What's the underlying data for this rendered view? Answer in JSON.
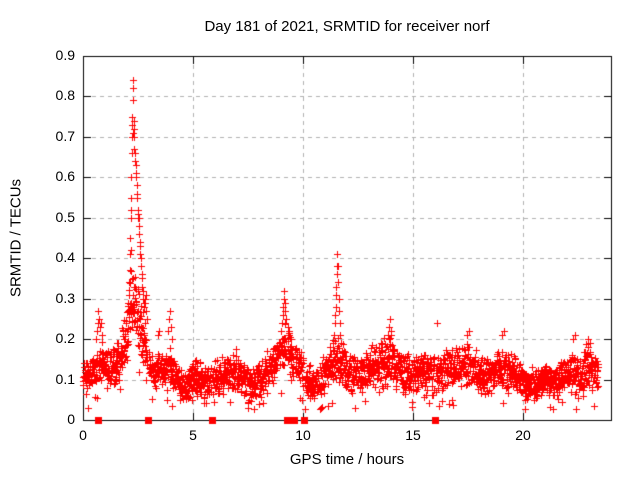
{
  "chart_data": {
    "type": "scatter",
    "title": "Day 181 of 2021, SRMTID for receiver norf",
    "xlabel": "GPS time / hours",
    "ylabel": "SRMTID / TECUs",
    "xlim": [
      0,
      24
    ],
    "ylim": [
      0,
      0.9
    ],
    "xticks": [
      0,
      5,
      10,
      15,
      20
    ],
    "yticks": [
      "0",
      "0.1",
      "0.2",
      "0.3",
      "0.4",
      "0.5",
      "0.6",
      "0.7",
      "0.8",
      "0.9"
    ],
    "legend": "none",
    "grid": {
      "visible": true,
      "style": "dashed",
      "color": "#b0b0b0"
    },
    "marker": {
      "shape": "plus",
      "color": "#ff0000",
      "size": 7
    },
    "bottom_marker_style": {
      "shape": "filled-square",
      "color": "#ff0000",
      "size": 7
    },
    "bottom_markers": [
      0.68,
      2.95,
      5.86,
      9.27,
      9.6,
      10.05,
      16.0
    ],
    "gaps": [
      [
        0.66,
        0.71
      ],
      [
        2.92,
        2.98
      ],
      [
        5.83,
        5.89
      ],
      [
        9.24,
        9.3
      ],
      [
        9.57,
        9.63
      ],
      [
        10.02,
        10.08
      ],
      [
        15.97,
        16.03
      ]
    ],
    "sampling": {
      "start": 0.0,
      "end": 23.42,
      "step": 0.0098,
      "seed": 181
    },
    "envelope": [
      [
        0.0,
        0.11,
        0.045
      ],
      [
        0.3,
        0.1,
        0.04
      ],
      [
        0.55,
        0.13,
        0.05
      ],
      [
        0.7,
        0.16,
        0.06
      ],
      [
        0.85,
        0.14,
        0.055
      ],
      [
        1.0,
        0.12,
        0.05
      ],
      [
        1.3,
        0.13,
        0.05
      ],
      [
        1.6,
        0.15,
        0.055
      ],
      [
        1.8,
        0.17,
        0.06
      ],
      [
        2.0,
        0.22,
        0.07
      ],
      [
        2.15,
        0.28,
        0.08
      ],
      [
        2.3,
        0.3,
        0.09
      ],
      [
        2.45,
        0.27,
        0.08
      ],
      [
        2.6,
        0.24,
        0.08
      ],
      [
        2.75,
        0.21,
        0.07
      ],
      [
        2.9,
        0.16,
        0.05
      ],
      [
        3.05,
        0.12,
        0.045
      ],
      [
        3.3,
        0.11,
        0.045
      ],
      [
        3.6,
        0.13,
        0.05
      ],
      [
        3.9,
        0.15,
        0.06
      ],
      [
        4.1,
        0.11,
        0.05
      ],
      [
        4.4,
        0.09,
        0.04
      ],
      [
        4.7,
        0.08,
        0.035
      ],
      [
        5.0,
        0.1,
        0.045
      ],
      [
        5.4,
        0.1,
        0.045
      ],
      [
        5.8,
        0.09,
        0.04
      ],
      [
        6.2,
        0.11,
        0.045
      ],
      [
        6.6,
        0.12,
        0.05
      ],
      [
        6.9,
        0.13,
        0.05
      ],
      [
        7.2,
        0.1,
        0.045
      ],
      [
        7.6,
        0.08,
        0.04
      ],
      [
        8.0,
        0.1,
        0.045
      ],
      [
        8.4,
        0.12,
        0.05
      ],
      [
        8.8,
        0.15,
        0.055
      ],
      [
        9.1,
        0.18,
        0.06
      ],
      [
        9.3,
        0.19,
        0.065
      ],
      [
        9.5,
        0.15,
        0.055
      ],
      [
        9.8,
        0.13,
        0.05
      ],
      [
        10.1,
        0.1,
        0.05
      ],
      [
        10.5,
        0.09,
        0.045
      ],
      [
        10.9,
        0.11,
        0.05
      ],
      [
        11.2,
        0.13,
        0.055
      ],
      [
        11.5,
        0.16,
        0.065
      ],
      [
        11.8,
        0.14,
        0.055
      ],
      [
        12.1,
        0.12,
        0.05
      ],
      [
        12.5,
        0.11,
        0.05
      ],
      [
        12.9,
        0.13,
        0.055
      ],
      [
        13.3,
        0.13,
        0.055
      ],
      [
        13.7,
        0.14,
        0.06
      ],
      [
        13.95,
        0.15,
        0.06
      ],
      [
        14.2,
        0.12,
        0.05
      ],
      [
        14.6,
        0.11,
        0.05
      ],
      [
        15.0,
        0.12,
        0.05
      ],
      [
        15.4,
        0.11,
        0.05
      ],
      [
        15.8,
        0.11,
        0.05
      ],
      [
        16.2,
        0.12,
        0.05
      ],
      [
        16.6,
        0.13,
        0.055
      ],
      [
        17.0,
        0.13,
        0.055
      ],
      [
        17.4,
        0.14,
        0.055
      ],
      [
        17.8,
        0.13,
        0.05
      ],
      [
        18.2,
        0.11,
        0.05
      ],
      [
        18.6,
        0.11,
        0.05
      ],
      [
        19.0,
        0.13,
        0.055
      ],
      [
        19.4,
        0.12,
        0.05
      ],
      [
        19.8,
        0.1,
        0.045
      ],
      [
        20.2,
        0.09,
        0.045
      ],
      [
        20.6,
        0.09,
        0.04
      ],
      [
        21.0,
        0.1,
        0.045
      ],
      [
        21.4,
        0.09,
        0.045
      ],
      [
        21.8,
        0.11,
        0.05
      ],
      [
        22.2,
        0.12,
        0.05
      ],
      [
        22.6,
        0.1,
        0.05
      ],
      [
        22.9,
        0.13,
        0.055
      ],
      [
        23.1,
        0.12,
        0.05
      ],
      [
        23.42,
        0.11,
        0.045
      ]
    ],
    "peaks": [
      [
        0.58,
        0.2
      ],
      [
        0.62,
        0.22
      ],
      [
        0.66,
        0.24
      ],
      [
        0.7,
        0.27
      ],
      [
        0.73,
        0.25
      ],
      [
        0.77,
        0.23
      ],
      [
        0.82,
        0.24
      ],
      [
        0.87,
        0.21
      ],
      [
        2.04,
        0.27
      ],
      [
        2.06,
        0.29
      ],
      [
        2.08,
        0.31
      ],
      [
        2.1,
        0.34
      ],
      [
        2.11,
        0.31
      ],
      [
        2.12,
        0.37
      ],
      [
        2.14,
        0.41
      ],
      [
        2.15,
        0.45
      ],
      [
        2.16,
        0.42
      ],
      [
        2.17,
        0.5
      ],
      [
        2.18,
        0.55
      ],
      [
        2.19,
        0.52
      ],
      [
        2.2,
        0.6
      ],
      [
        2.21,
        0.66
      ],
      [
        2.22,
        0.7
      ],
      [
        2.23,
        0.73
      ],
      [
        2.24,
        0.75
      ],
      [
        2.25,
        0.71
      ],
      [
        2.26,
        0.84
      ],
      [
        2.27,
        0.82
      ],
      [
        2.28,
        0.79
      ],
      [
        2.3,
        0.74
      ],
      [
        2.31,
        0.72
      ],
      [
        2.33,
        0.7
      ],
      [
        2.34,
        0.67
      ],
      [
        2.36,
        0.66
      ],
      [
        2.37,
        0.64
      ],
      [
        2.39,
        0.63
      ],
      [
        2.4,
        0.61
      ],
      [
        2.41,
        0.6
      ],
      [
        2.43,
        0.6
      ],
      [
        2.44,
        0.58
      ],
      [
        2.46,
        0.56
      ],
      [
        2.47,
        0.55
      ],
      [
        2.49,
        0.52
      ],
      [
        2.5,
        0.51
      ],
      [
        2.52,
        0.5
      ],
      [
        2.53,
        0.5
      ],
      [
        2.55,
        0.48
      ],
      [
        2.56,
        0.46
      ],
      [
        2.58,
        0.44
      ],
      [
        2.59,
        0.43
      ],
      [
        2.61,
        0.41
      ],
      [
        2.62,
        0.4
      ],
      [
        2.64,
        0.4
      ],
      [
        2.65,
        0.38
      ],
      [
        2.67,
        0.36
      ],
      [
        2.68,
        0.35
      ],
      [
        2.7,
        0.33
      ],
      [
        2.72,
        0.32
      ],
      [
        2.73,
        0.3
      ],
      [
        2.75,
        0.29
      ],
      [
        2.77,
        0.28
      ],
      [
        2.8,
        0.3
      ],
      [
        2.82,
        0.29
      ],
      [
        2.85,
        0.31
      ],
      [
        2.88,
        0.27
      ],
      [
        2.9,
        0.25
      ],
      [
        3.4,
        0.21
      ],
      [
        3.45,
        0.22
      ],
      [
        3.85,
        0.22
      ],
      [
        3.9,
        0.25
      ],
      [
        3.95,
        0.27
      ],
      [
        4.0,
        0.23
      ],
      [
        4.05,
        0.2
      ],
      [
        9.0,
        0.22
      ],
      [
        9.05,
        0.24
      ],
      [
        9.08,
        0.26
      ],
      [
        9.1,
        0.28
      ],
      [
        9.13,
        0.3
      ],
      [
        9.15,
        0.32
      ],
      [
        9.18,
        0.29
      ],
      [
        9.2,
        0.27
      ],
      [
        9.23,
        0.25
      ],
      [
        9.32,
        0.21
      ],
      [
        9.38,
        0.22
      ],
      [
        9.45,
        0.2
      ],
      [
        11.38,
        0.19
      ],
      [
        11.41,
        0.21
      ],
      [
        11.44,
        0.24
      ],
      [
        11.46,
        0.26
      ],
      [
        11.48,
        0.28
      ],
      [
        11.5,
        0.31
      ],
      [
        11.52,
        0.33
      ],
      [
        11.54,
        0.36
      ],
      [
        11.55,
        0.38
      ],
      [
        11.56,
        0.41
      ],
      [
        11.58,
        0.38
      ],
      [
        11.6,
        0.34
      ],
      [
        11.62,
        0.3
      ],
      [
        11.64,
        0.27
      ],
      [
        11.67,
        0.24
      ],
      [
        11.7,
        0.21
      ],
      [
        11.74,
        0.19
      ],
      [
        13.85,
        0.21
      ],
      [
        13.9,
        0.23
      ],
      [
        13.95,
        0.25
      ],
      [
        14.0,
        0.22
      ],
      [
        16.1,
        0.24
      ],
      [
        17.45,
        0.21
      ],
      [
        17.55,
        0.22
      ],
      [
        19.05,
        0.21
      ],
      [
        19.15,
        0.22
      ],
      [
        22.25,
        0.2
      ],
      [
        22.35,
        0.21
      ],
      [
        22.95,
        0.2
      ],
      [
        23.05,
        0.19
      ]
    ]
  }
}
